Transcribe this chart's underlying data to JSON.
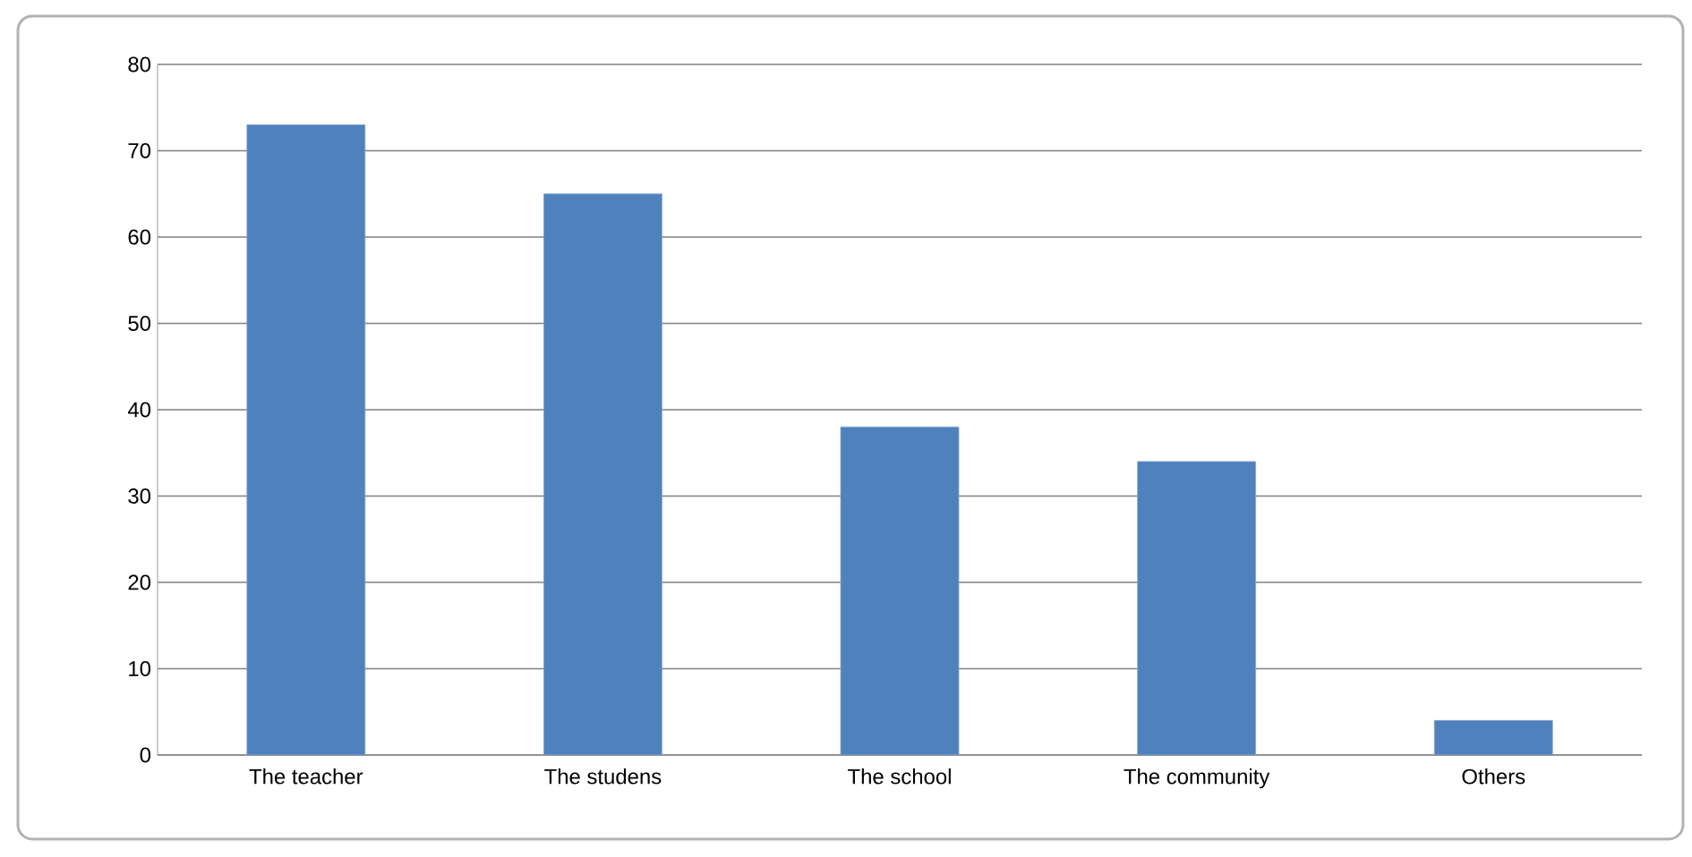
{
  "chart_data": {
    "type": "bar",
    "categories": [
      "The teacher",
      "The studens",
      "The school",
      "The community",
      "Others"
    ],
    "values": [
      73,
      65,
      38,
      34,
      4
    ],
    "color": "#4f81bd",
    "ylim": [
      0,
      80
    ],
    "yticks": [
      0,
      10,
      20,
      30,
      40,
      50,
      60,
      70,
      80
    ],
    "grid": "y"
  }
}
